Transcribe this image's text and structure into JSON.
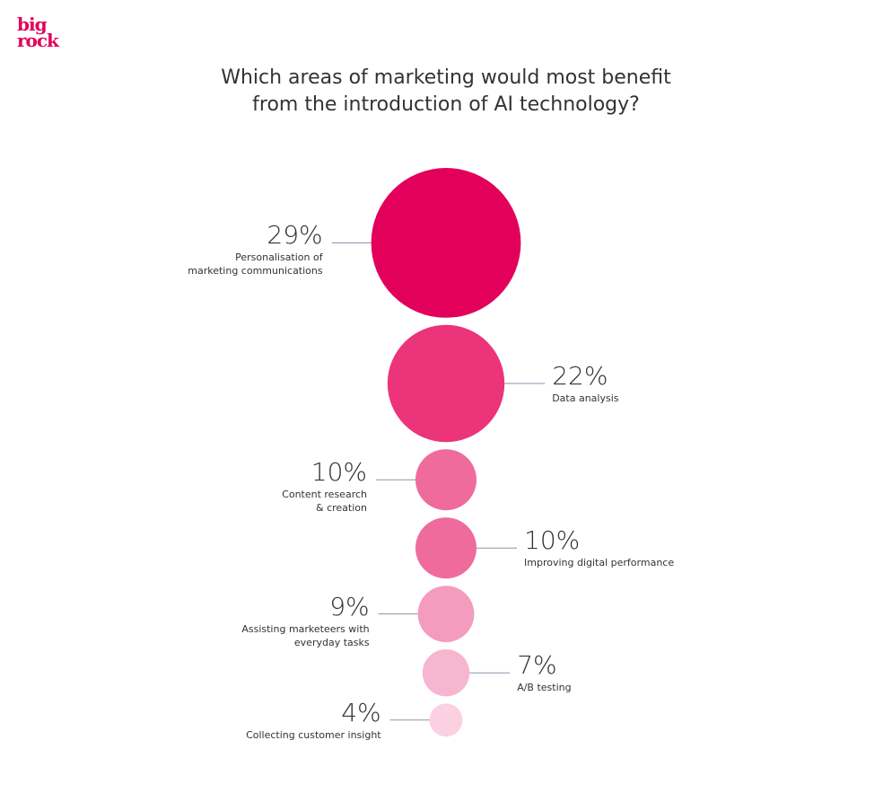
{
  "logo": [
    "big",
    "rock"
  ],
  "chart_data": {
    "type": "bubble",
    "title": "Which areas of marketing would most benefit\nfrom the introduction of AI technology?",
    "categories": [
      "Personalisation of\nmarketing communications",
      "Data analysis",
      "Content research\n& creation",
      "Improving digital performance",
      "Assisting marketeers with\neveryday tasks",
      "A/B testing",
      "Collecting customer insight"
    ],
    "values": [
      29,
      22,
      10,
      10,
      9,
      7,
      4
    ],
    "value_labels": [
      "29%",
      "22%",
      "10%",
      "10%",
      "9%",
      "7%",
      "4%"
    ],
    "colors": [
      "#e2005a",
      "#eb3479",
      "#ef6b9c",
      "#ef6b9c",
      "#f39cbd",
      "#f7b6cf",
      "#fbd0e0"
    ]
  }
}
